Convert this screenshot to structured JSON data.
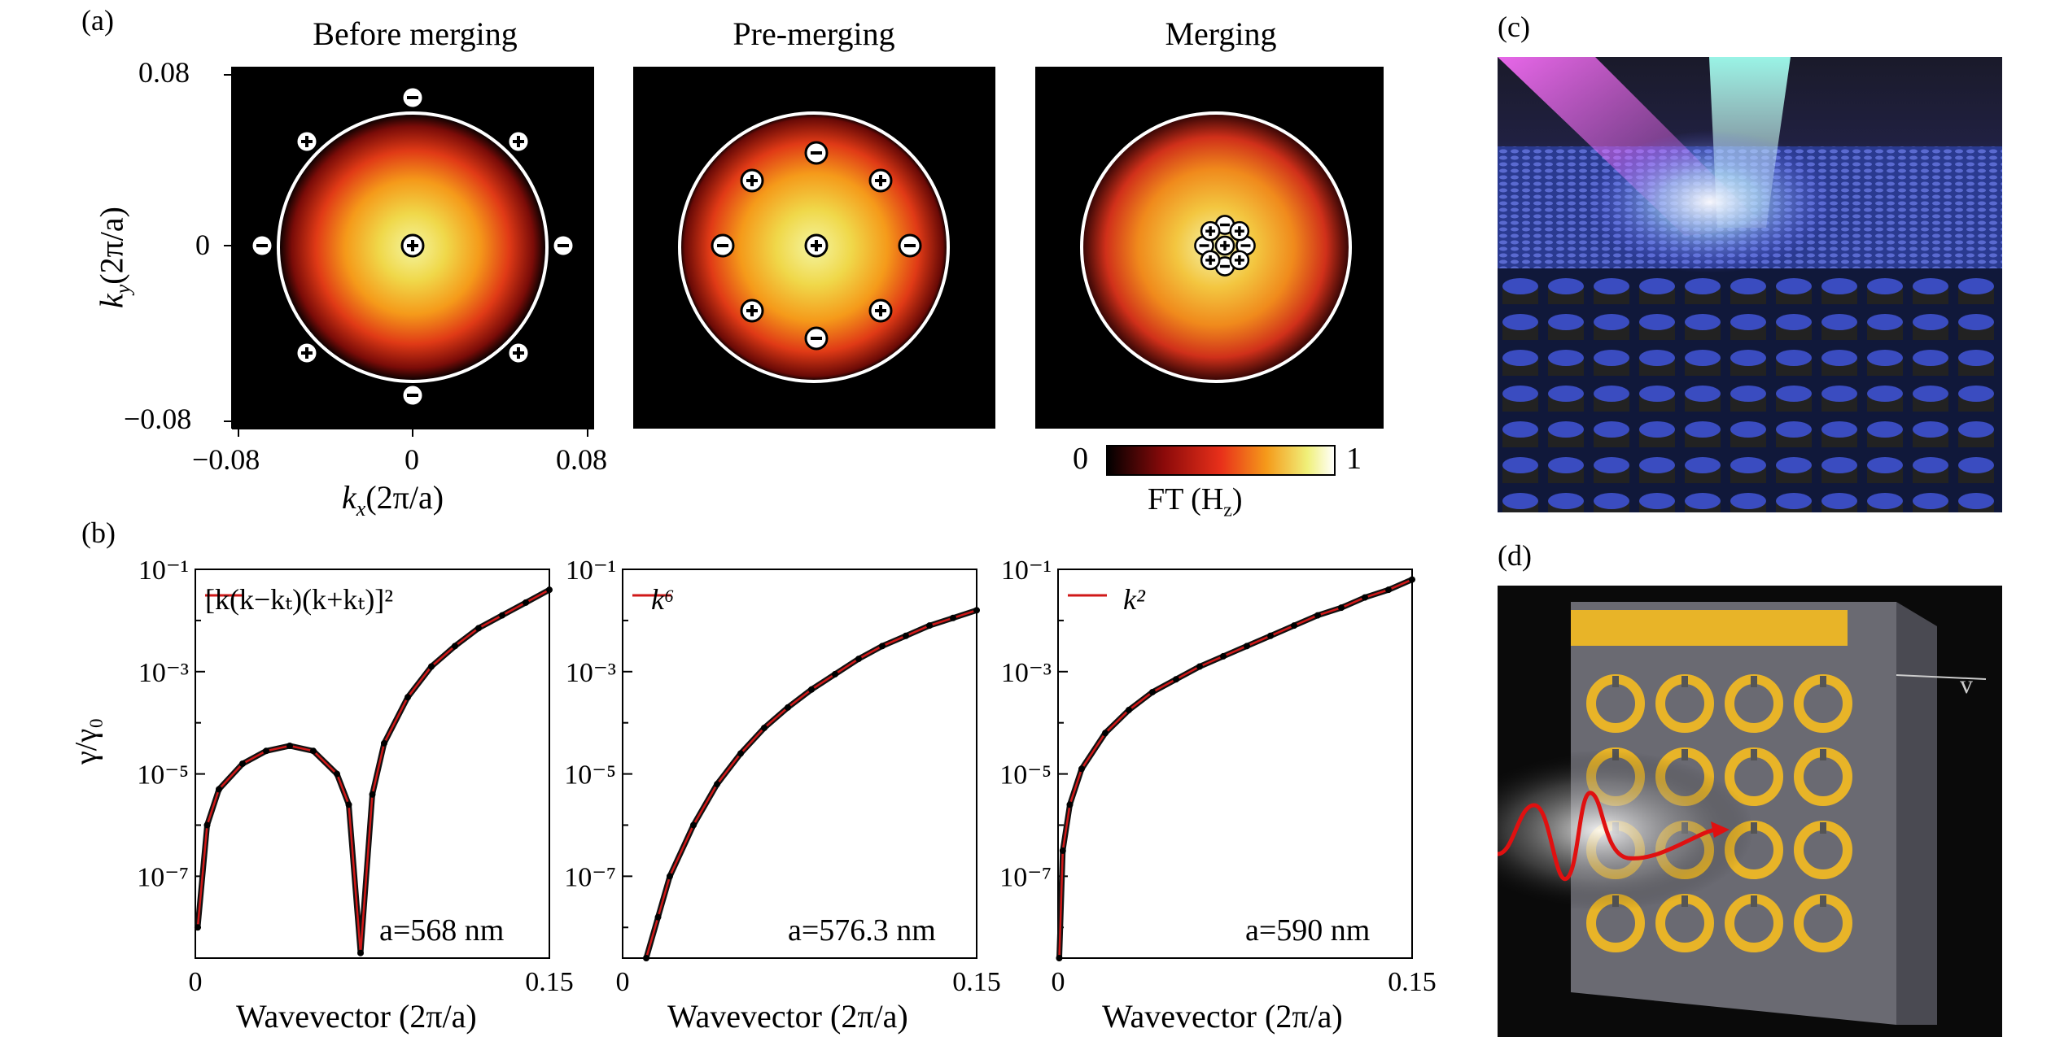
{
  "panel_labels": {
    "a": "(a)",
    "b": "(b)",
    "c": "(c)",
    "d": "(d)"
  },
  "panel_a": {
    "titles": [
      "Before merging",
      "Pre-merging",
      "Merging"
    ],
    "x_ticks": [
      "−0.08",
      "0",
      "0.08"
    ],
    "y_ticks": [
      "0.08",
      "0",
      "−0.08"
    ],
    "x_label": "k",
    "x_label_sub": "x",
    "x_label_rest": "(2π/a)",
    "y_label": "k",
    "y_label_sub": "y",
    "y_label_rest": "(2π/a)",
    "colorbar_min": "0",
    "colorbar_max": "1",
    "colorbar_label": "FT (H",
    "colorbar_label_sub": "z",
    "colorbar_label_end": ")",
    "colorbar_colors": [
      "#000000",
      "#8b0a0a",
      "#e8301a",
      "#f59a1a",
      "#f0f07a",
      "#ffffff"
    ]
  },
  "chart_data": [
    {
      "type": "line",
      "annotation": "a=568 nm",
      "legend": "[k(k−kₜ)(k+kₜ)]²",
      "xlabel": "Wavevector (2π/a)",
      "ylabel": "γ/γ₀",
      "xlim": [
        0,
        0.15
      ],
      "ylim_log10": [
        -8.6,
        -1
      ],
      "x_ticks": [
        "0",
        "0.15"
      ],
      "y_ticks": [
        "10⁻¹",
        "10⁻³",
        "10⁻⁵",
        "10⁻⁷"
      ],
      "series": [
        {
          "kind": "data",
          "x": [
            0.001,
            0.005,
            0.01,
            0.02,
            0.03,
            0.04,
            0.05,
            0.06,
            0.065,
            0.07,
            0.075,
            0.08,
            0.09,
            0.1,
            0.11,
            0.12,
            0.13,
            0.14,
            0.15
          ],
          "log10y": [
            -8.0,
            -6.0,
            -5.3,
            -4.8,
            -4.55,
            -4.45,
            -4.55,
            -5.0,
            -5.6,
            -8.5,
            -5.4,
            -4.4,
            -3.5,
            -2.9,
            -2.5,
            -2.15,
            -1.9,
            -1.65,
            -1.4
          ]
        }
      ]
    },
    {
      "type": "line",
      "annotation": "a=576.3 nm",
      "legend": "k⁶",
      "xlabel": "Wavevector (2π/a)",
      "ylabel": "",
      "xlim": [
        0,
        0.15
      ],
      "ylim_log10": [
        -8.6,
        -1
      ],
      "x_ticks": [
        "0",
        "0.15"
      ],
      "y_ticks": [
        "10⁻¹",
        "10⁻³",
        "10⁻⁵",
        "10⁻⁷"
      ],
      "series": [
        {
          "kind": "data",
          "x": [
            0.01,
            0.015,
            0.02,
            0.03,
            0.04,
            0.05,
            0.06,
            0.07,
            0.08,
            0.09,
            0.1,
            0.11,
            0.12,
            0.13,
            0.14,
            0.15
          ],
          "log10y": [
            -8.6,
            -7.8,
            -7.0,
            -6.0,
            -5.2,
            -4.6,
            -4.1,
            -3.7,
            -3.35,
            -3.05,
            -2.75,
            -2.5,
            -2.3,
            -2.1,
            -1.95,
            -1.8
          ]
        }
      ]
    },
    {
      "type": "line",
      "annotation": "a=590 nm",
      "legend": "k²",
      "xlabel": "Wavevector (2π/a)",
      "ylabel": "",
      "xlim": [
        0,
        0.15
      ],
      "ylim_log10": [
        -8.6,
        -1
      ],
      "x_ticks": [
        "0",
        "0.15"
      ],
      "y_ticks": [
        "10⁻¹",
        "10⁻³",
        "10⁻⁵",
        "10⁻⁷"
      ],
      "series": [
        {
          "kind": "data",
          "x": [
            0.0005,
            0.002,
            0.005,
            0.01,
            0.02,
            0.03,
            0.04,
            0.05,
            0.06,
            0.07,
            0.08,
            0.09,
            0.1,
            0.11,
            0.12,
            0.13,
            0.14,
            0.15
          ],
          "log10y": [
            -8.6,
            -6.5,
            -5.6,
            -4.9,
            -4.2,
            -3.75,
            -3.4,
            -3.15,
            -2.9,
            -2.7,
            -2.5,
            -2.3,
            -2.1,
            -1.9,
            -1.75,
            -1.55,
            -1.4,
            -1.2
          ]
        }
      ]
    }
  ]
}
